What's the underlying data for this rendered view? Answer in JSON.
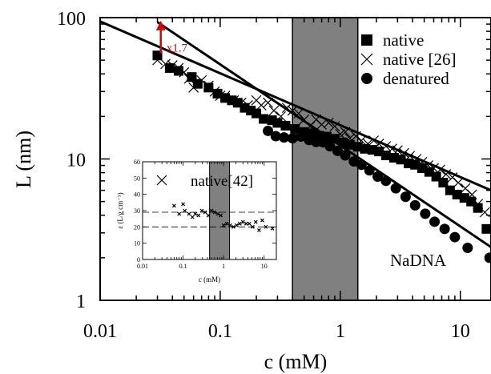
{
  "chart_data": [
    {
      "type": "scatter",
      "title": "",
      "xlabel": "c (mM)",
      "ylabel": "L (nm)",
      "xscale": "log",
      "yscale": "log",
      "xlim": [
        0.01,
        18
      ],
      "ylim": [
        1,
        100
      ],
      "x_ticks": [
        0.01,
        0.1,
        1,
        10
      ],
      "x_tick_labels": [
        "0.01",
        "0.1",
        "1",
        "10"
      ],
      "y_ticks": [
        1,
        10,
        100
      ],
      "y_tick_labels": [
        "1",
        "10",
        "100"
      ],
      "grid": false,
      "legend_position": "top-right",
      "shaded_region": {
        "x_from": 0.4,
        "x_to": 1.4,
        "color": "#808080"
      },
      "annotations": [
        {
          "text": "NaDNA",
          "x": 2.6,
          "y": 1.75
        },
        {
          "text": "x1.7",
          "x": 0.032,
          "y": 56,
          "color": "#e00000",
          "arrow_from": 56,
          "arrow_to": 95
        }
      ],
      "fit_lines": [
        {
          "x": [
            0.01,
            18
          ],
          "y": [
            94,
            6.0
          ]
        },
        {
          "x": [
            0.03,
            18
          ],
          "y": [
            93,
            2.38
          ]
        }
      ],
      "series": [
        {
          "name": "native",
          "marker": "square",
          "x": [
            0.03,
            0.038,
            0.045,
            0.058,
            0.065,
            0.08,
            0.095,
            0.11,
            0.125,
            0.14,
            0.16,
            0.18,
            0.2,
            0.23,
            0.27,
            0.3,
            0.35,
            0.42,
            0.5,
            0.58,
            0.67,
            0.77,
            0.9,
            1.05,
            1.2,
            1.4,
            1.6,
            1.85,
            2.1,
            2.4,
            2.8,
            3.2,
            3.7,
            4.2,
            4.8,
            5.5,
            6.3,
            7.2,
            8.2,
            9.4,
            10.8,
            12.3,
            14,
            16.5
          ],
          "y": [
            54,
            44,
            42,
            38,
            34,
            32,
            29,
            27,
            26,
            25,
            23,
            22,
            21,
            19.2,
            18.8,
            18,
            17.2,
            16.3,
            15.5,
            15.2,
            14.6,
            14.4,
            13.9,
            13.1,
            12.6,
            12.2,
            11.8,
            11.6,
            11.3,
            10.6,
            10.2,
            9.9,
            9.3,
            9.1,
            8.6,
            8.1,
            7.5,
            6.8,
            6.0,
            5.6,
            5.3,
            5.0,
            4.5,
            3.2
          ]
        },
        {
          "name": "native [26]",
          "marker": "x",
          "x": [
            0.03,
            0.035,
            0.04,
            0.045,
            0.05,
            0.055,
            0.06,
            0.07,
            0.08,
            0.09,
            0.1,
            0.11,
            0.13,
            0.15,
            0.17,
            0.2,
            0.22,
            0.25,
            0.28,
            0.32,
            0.36,
            0.4,
            0.45,
            0.5,
            0.56,
            0.63,
            0.7,
            0.8,
            0.9,
            1.0,
            1.1,
            1.2,
            1.35,
            1.5,
            1.7,
            1.9,
            2.1,
            2.4,
            2.7,
            3.0,
            3.4,
            3.8,
            4.3,
            4.8,
            5.4,
            6.0,
            6.8,
            7.6,
            8.6,
            9.6,
            11,
            12.5,
            14,
            16
          ],
          "y": [
            50,
            47,
            46,
            44,
            41,
            37,
            32,
            36,
            33,
            30,
            28,
            28,
            26,
            25,
            24,
            26,
            24,
            25,
            22,
            20,
            23,
            22,
            21,
            19,
            17,
            19,
            17.5,
            18,
            17,
            15,
            15.5,
            14,
            14.5,
            13.5,
            12.8,
            13.5,
            12.8,
            12.3,
            11.8,
            11.5,
            11,
            10.5,
            10,
            9.5,
            9,
            8.6,
            8.4,
            7.8,
            7.4,
            6.8,
            6.2,
            5.6,
            4.8,
            4.2
          ]
        },
        {
          "name": "denatured",
          "marker": "circle",
          "x": [
            0.25,
            0.29,
            0.34,
            0.4,
            0.47,
            0.55,
            0.63,
            0.72,
            0.82,
            0.95,
            1.1,
            1.3,
            1.5,
            1.75,
            2.05,
            2.4,
            2.9,
            3.5,
            4.2,
            5.1,
            6.1,
            7.4,
            9.0,
            11.5,
            17.5
          ],
          "y": [
            15.8,
            14.5,
            14.2,
            14.0,
            14.4,
            13.6,
            13.2,
            13.1,
            12.3,
            11.4,
            10.6,
            9.6,
            9.1,
            8.3,
            7.5,
            7.0,
            6.2,
            5.4,
            4.7,
            4.1,
            3.6,
            3.2,
            2.8,
            2.35,
            2.0
          ]
        }
      ]
    },
    {
      "type": "scatter",
      "title": "",
      "xlabel": "c (mM)",
      "ylabel": "ε (L/g cm⁻¹)",
      "xscale": "log",
      "xlim": [
        0.01,
        20
      ],
      "ylim": [
        0,
        60
      ],
      "x_ticks": [
        0.01,
        0.1,
        1,
        10
      ],
      "x_tick_labels": [
        "0.01",
        "0.1",
        "1",
        "10"
      ],
      "y_ticks": [
        0,
        10,
        20,
        30,
        40,
        50,
        60
      ],
      "y_tick_labels": [
        "0",
        "10",
        "20",
        "30",
        "40",
        "50",
        "60"
      ],
      "legend_position": "top-right",
      "shaded_region": {
        "x_from": 0.45,
        "x_to": 1.4,
        "color": "#808080"
      },
      "reference_lines": [
        29,
        20
      ],
      "series": [
        {
          "name": "native[42]",
          "marker": "x",
          "x": [
            0.06,
            0.08,
            0.1,
            0.11,
            0.14,
            0.17,
            0.2,
            0.24,
            0.29,
            0.35,
            0.42,
            0.5,
            0.6,
            0.72,
            0.85,
            1.0,
            1.2,
            1.45,
            1.75,
            2.1,
            2.5,
            3.0,
            3.6,
            4.3,
            5.2,
            6.2,
            7.5,
            9.0,
            11,
            16
          ],
          "y": [
            33,
            28,
            34,
            30,
            28,
            26,
            28,
            27,
            30,
            29,
            27,
            30,
            29,
            28,
            27,
            21,
            22,
            21,
            20,
            21,
            22,
            23,
            22,
            22,
            20,
            23,
            18,
            24,
            20,
            19
          ]
        }
      ]
    }
  ]
}
